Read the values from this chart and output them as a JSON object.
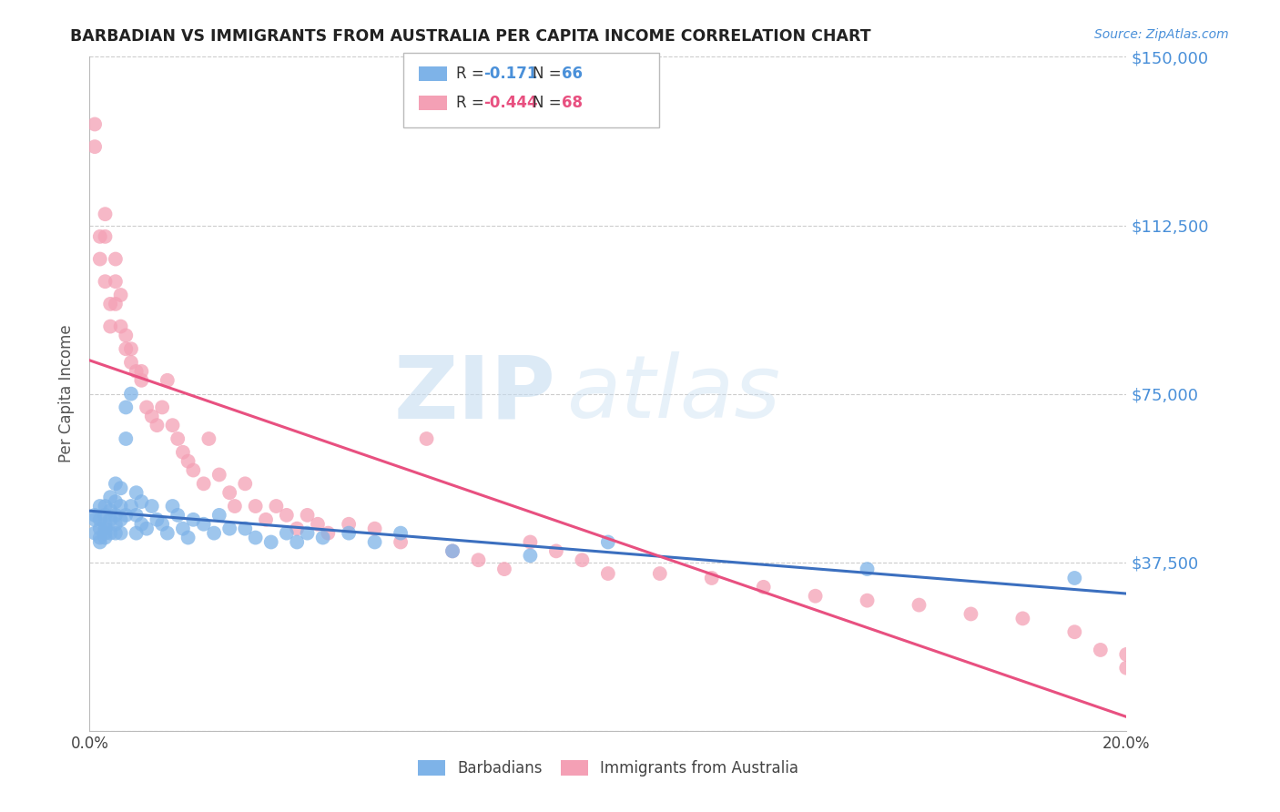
{
  "title": "BARBADIAN VS IMMIGRANTS FROM AUSTRALIA PER CAPITA INCOME CORRELATION CHART",
  "source": "Source: ZipAtlas.com",
  "ylabel": "Per Capita Income",
  "xlim": [
    0.0,
    0.2
  ],
  "ylim": [
    0,
    150000
  ],
  "yticks": [
    0,
    37500,
    75000,
    112500,
    150000
  ],
  "ytick_labels": [
    "",
    "$37,500",
    "$75,000",
    "$112,500",
    "$150,000"
  ],
  "xticks": [
    0.0,
    0.05,
    0.1,
    0.15,
    0.2
  ],
  "xtick_labels": [
    "0.0%",
    "",
    "",
    "",
    "20.0%"
  ],
  "barbadian_color": "#7EB3E8",
  "australia_color": "#F4A0B5",
  "barbadian_line_color": "#3B6FBF",
  "australia_line_color": "#E85080",
  "barbadian_R": -0.171,
  "barbadian_N": 66,
  "australia_R": -0.444,
  "australia_N": 68,
  "legend_label_1": "Barbadians",
  "legend_label_2": "Immigrants from Australia",
  "watermark_zip": "ZIP",
  "watermark_atlas": "atlas",
  "title_color": "#222222",
  "axis_label_color": "#555555",
  "ytick_color": "#4A90D9",
  "grid_color": "#cccccc",
  "background_color": "#ffffff",
  "barbadian_x": [
    0.001,
    0.001,
    0.001,
    0.002,
    0.002,
    0.002,
    0.002,
    0.002,
    0.003,
    0.003,
    0.003,
    0.003,
    0.003,
    0.003,
    0.004,
    0.004,
    0.004,
    0.004,
    0.005,
    0.005,
    0.005,
    0.005,
    0.005,
    0.006,
    0.006,
    0.006,
    0.006,
    0.007,
    0.007,
    0.007,
    0.008,
    0.008,
    0.009,
    0.009,
    0.009,
    0.01,
    0.01,
    0.011,
    0.012,
    0.013,
    0.014,
    0.015,
    0.016,
    0.017,
    0.018,
    0.019,
    0.02,
    0.022,
    0.024,
    0.025,
    0.027,
    0.03,
    0.032,
    0.035,
    0.038,
    0.04,
    0.042,
    0.045,
    0.05,
    0.055,
    0.06,
    0.07,
    0.085,
    0.1,
    0.15,
    0.19
  ],
  "barbadian_y": [
    48000,
    47000,
    44000,
    50000,
    47000,
    45000,
    43000,
    42000,
    50000,
    48000,
    46000,
    45000,
    44000,
    43000,
    52000,
    49000,
    47000,
    44000,
    55000,
    51000,
    48000,
    46000,
    44000,
    54000,
    50000,
    47000,
    44000,
    72000,
    65000,
    48000,
    75000,
    50000,
    53000,
    48000,
    44000,
    51000,
    46000,
    45000,
    50000,
    47000,
    46000,
    44000,
    50000,
    48000,
    45000,
    43000,
    47000,
    46000,
    44000,
    48000,
    45000,
    45000,
    43000,
    42000,
    44000,
    42000,
    44000,
    43000,
    44000,
    42000,
    44000,
    40000,
    39000,
    42000,
    36000,
    34000
  ],
  "australia_x": [
    0.001,
    0.001,
    0.002,
    0.002,
    0.003,
    0.003,
    0.003,
    0.004,
    0.004,
    0.005,
    0.005,
    0.005,
    0.006,
    0.006,
    0.007,
    0.007,
    0.008,
    0.008,
    0.009,
    0.01,
    0.01,
    0.011,
    0.012,
    0.013,
    0.014,
    0.015,
    0.016,
    0.017,
    0.018,
    0.019,
    0.02,
    0.022,
    0.023,
    0.025,
    0.027,
    0.028,
    0.03,
    0.032,
    0.034,
    0.036,
    0.038,
    0.04,
    0.042,
    0.044,
    0.046,
    0.05,
    0.055,
    0.06,
    0.065,
    0.07,
    0.075,
    0.08,
    0.085,
    0.09,
    0.095,
    0.1,
    0.11,
    0.12,
    0.13,
    0.14,
    0.15,
    0.16,
    0.17,
    0.18,
    0.19,
    0.195,
    0.2,
    0.2
  ],
  "australia_y": [
    135000,
    130000,
    110000,
    105000,
    100000,
    110000,
    115000,
    95000,
    90000,
    100000,
    105000,
    95000,
    97000,
    90000,
    88000,
    85000,
    82000,
    85000,
    80000,
    80000,
    78000,
    72000,
    70000,
    68000,
    72000,
    78000,
    68000,
    65000,
    62000,
    60000,
    58000,
    55000,
    65000,
    57000,
    53000,
    50000,
    55000,
    50000,
    47000,
    50000,
    48000,
    45000,
    48000,
    46000,
    44000,
    46000,
    45000,
    42000,
    65000,
    40000,
    38000,
    36000,
    42000,
    40000,
    38000,
    35000,
    35000,
    34000,
    32000,
    30000,
    29000,
    28000,
    26000,
    25000,
    22000,
    18000,
    14000,
    17000
  ]
}
